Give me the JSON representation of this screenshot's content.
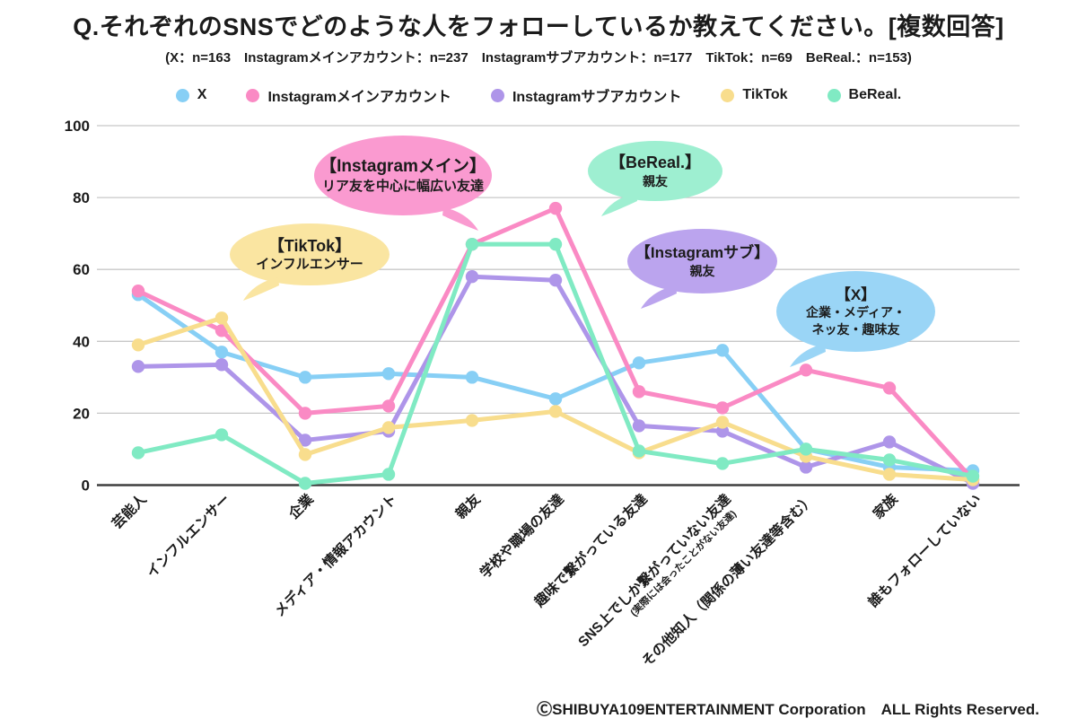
{
  "title": "Q.それぞれのSNSでどのような人をフォローしているか教えてください。[複数回答]",
  "subtitle": "(X：n=163　Instagramメインアカウント：n=237　Instagramサブアカウント：n=177　TikTok：n=69　BeReal.：n=153)",
  "footer": "ⒸSHIBUYA109ENTERTAINMENT Corporation　ALL Rights Reserved.",
  "colors": {
    "grid": "#c8c8c8",
    "axis": "#3f3f3f",
    "text": "#1b1b1b"
  },
  "chart_data": {
    "type": "line",
    "title": "Q.それぞれのSNSでどのような人をフォローしているか教えてください。[複数回答]",
    "categories": [
      "芸能人",
      "インフルエンサー",
      "企業",
      "メディア・情報アカウント",
      "親友",
      "学校や職場の友達",
      "趣味で繋がっている友達",
      "SNS上でしか繋がっていない友達",
      "その他知人（関係の薄い友達等含む）",
      "家族",
      "誰もフォローしていない"
    ],
    "category_notes": {
      "7": "(実際には会ったことがない友達)"
    },
    "series": [
      {
        "name": "X",
        "color": "#87CFF5",
        "values": [
          53,
          37,
          30,
          31,
          30,
          24,
          34,
          37.5,
          10,
          5,
          4
        ]
      },
      {
        "name": "Instagramメインアカウント",
        "color": "#FA8AC4",
        "values": [
          54,
          43,
          20,
          22,
          67,
          77,
          26,
          21.5,
          32,
          27,
          1.5
        ]
      },
      {
        "name": "Instagramサブアカウント",
        "color": "#AE95E9",
        "values": [
          33,
          33.5,
          12.5,
          15,
          58,
          57,
          16.5,
          15,
          5,
          12,
          0.5
        ]
      },
      {
        "name": "TikTok",
        "color": "#F8DD8D",
        "values": [
          39,
          46.5,
          8.5,
          16,
          18,
          20.5,
          9,
          17.5,
          8,
          3,
          1.5
        ]
      },
      {
        "name": "BeReal.",
        "color": "#80EAC3",
        "values": [
          9,
          14,
          0.5,
          3,
          67,
          67,
          9.5,
          6,
          10,
          7,
          2.5
        ]
      }
    ],
    "xlabel": "",
    "ylabel": "",
    "ylim": [
      0,
      100
    ],
    "yticks": [
      0,
      20,
      40,
      60,
      80,
      100
    ],
    "grid": true,
    "legend_position": "top"
  },
  "callouts": [
    {
      "id": "instagram-main",
      "title": "【Instagramメイン】",
      "body": "リア友を中心に幅広い友達",
      "color": "#FA9AD0",
      "tail": "br"
    },
    {
      "id": "bereal",
      "title": "【BeReal.】",
      "body": "親友",
      "color": "#9EEFD1",
      "tail": "bl"
    },
    {
      "id": "tiktok",
      "title": "【TikTok】",
      "body": "インフルエンサー",
      "color": "#FAE5A1",
      "tail": "bl"
    },
    {
      "id": "instagram-sub",
      "title": "【Instagramサブ】",
      "body": "親友",
      "color": "#BBA4EE",
      "tail": "bl"
    },
    {
      "id": "x",
      "title": "【X】",
      "body": "企業・メディア・\nネッ友・趣味友",
      "color": "#9AD5F6",
      "tail": "bl"
    }
  ]
}
